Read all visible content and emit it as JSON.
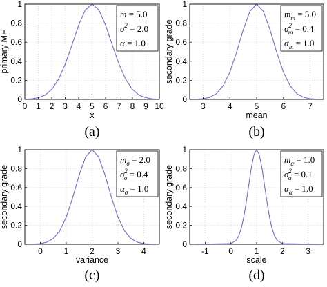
{
  "chart_data": [
    {
      "type": "line",
      "panel_label": "(a)",
      "xlabel": "x",
      "ylabel": "primary MF",
      "xlim": [
        0,
        10
      ],
      "ylim": [
        0,
        1
      ],
      "xticks": [
        0,
        1,
        2,
        3,
        4,
        5,
        6,
        7,
        8,
        9,
        10
      ],
      "yticks": [
        0,
        0.2,
        0.4,
        0.6,
        0.8,
        1
      ],
      "grid": true,
      "series": [
        {
          "color": "#6b6bd6",
          "x": [
            0,
            0.5,
            1,
            1.5,
            2,
            2.5,
            3,
            3.5,
            4,
            4.5,
            5,
            5.5,
            6,
            6.5,
            7,
            7.5,
            8,
            8.5,
            9,
            9.5,
            10
          ],
          "y": [
            0.002,
            0.005,
            0.018,
            0.044,
            0.105,
            0.21,
            0.37,
            0.57,
            0.78,
            0.94,
            1.0,
            0.94,
            0.78,
            0.57,
            0.37,
            0.21,
            0.105,
            0.044,
            0.018,
            0.005,
            0.002
          ]
        }
      ],
      "legend": {
        "position": "top-right",
        "rows": [
          {
            "sym": "m",
            "sub": "",
            "sup": "",
            "val": "= 5.0"
          },
          {
            "sym": "σ",
            "sub": "",
            "sup": "2",
            "val": "= 2.0"
          },
          {
            "sym": "α",
            "sub": "",
            "sup": "",
            "val": "= 1.0"
          }
        ]
      }
    },
    {
      "type": "line",
      "panel_label": "(b)",
      "xlabel": "mean",
      "ylabel": "secondary grade",
      "xlim": [
        2.5,
        7.5
      ],
      "ylim": [
        0,
        1
      ],
      "xticks": [
        3,
        4,
        5,
        6,
        7
      ],
      "yticks": [
        0,
        0.2,
        0.4,
        0.6,
        0.8,
        1
      ],
      "grid": true,
      "series": [
        {
          "color": "#6b6bd6",
          "x": [
            2.5,
            2.75,
            3,
            3.25,
            3.5,
            3.75,
            4,
            4.25,
            4.5,
            4.75,
            5,
            5.25,
            5.5,
            5.75,
            6,
            6.25,
            6.5,
            6.75,
            7,
            7.25,
            7.5
          ],
          "y": [
            0.0004,
            0.0022,
            0.0067,
            0.0218,
            0.0601,
            0.1427,
            0.2865,
            0.4946,
            0.7316,
            0.925,
            1.0,
            0.925,
            0.7316,
            0.4946,
            0.2865,
            0.1427,
            0.0601,
            0.0218,
            0.0067,
            0.0022,
            0.0004
          ]
        }
      ],
      "legend": {
        "position": "top-right",
        "rows": [
          {
            "sym": "m",
            "sub": "m",
            "sup": "",
            "val": "= 5.0"
          },
          {
            "sym": "σ",
            "sub": "m",
            "sup": "2",
            "val": "= 0.4"
          },
          {
            "sym": "α",
            "sub": "m",
            "sup": "",
            "val": "= 1.0"
          }
        ]
      }
    },
    {
      "type": "line",
      "panel_label": "(c)",
      "xlabel": "variance",
      "ylabel": "secondary grade",
      "xlim": [
        -0.6,
        4.6
      ],
      "ylim": [
        0,
        1
      ],
      "xticks": [
        0,
        1,
        2,
        3,
        4
      ],
      "yticks": [
        0,
        0.2,
        0.4,
        0.6,
        0.8,
        1
      ],
      "grid": true,
      "series": [
        {
          "color": "#6b6bd6",
          "x": [
            -0.6,
            -0.3,
            0,
            0.25,
            0.5,
            0.75,
            1,
            1.25,
            1.5,
            1.75,
            2,
            2.25,
            2.5,
            2.75,
            3,
            3.25,
            3.5,
            3.75,
            4,
            4.3,
            4.6
          ],
          "y": [
            0.0002,
            0.0014,
            0.0067,
            0.0218,
            0.0601,
            0.1427,
            0.2865,
            0.4946,
            0.7316,
            0.925,
            1.0,
            0.925,
            0.7316,
            0.4946,
            0.2865,
            0.1427,
            0.0601,
            0.0218,
            0.0067,
            0.0014,
            0.0002
          ]
        }
      ],
      "legend": {
        "position": "top-right",
        "rows": [
          {
            "sym": "m",
            "sub": "σ",
            "sup": "",
            "val": "= 2.0"
          },
          {
            "sym": "σ",
            "sub": "σ",
            "sup": "2",
            "val": "= 0.4"
          },
          {
            "sym": "α",
            "sub": "σ",
            "sup": "",
            "val": "= 1.0"
          }
        ]
      }
    },
    {
      "type": "line",
      "panel_label": "(d)",
      "xlabel": "scale",
      "ylabel": "secondary grade",
      "xlim": [
        -1.6,
        3.6
      ],
      "ylim": [
        0,
        1
      ],
      "xticks": [
        -1,
        0,
        1,
        2,
        3
      ],
      "yticks": [
        0,
        0.2,
        0.4,
        0.6,
        0.8,
        1
      ],
      "grid": true,
      "series": [
        {
          "color": "#6b6bd6",
          "x": [
            -1.6,
            0,
            0.2,
            0.3,
            0.4,
            0.5,
            0.6,
            0.7,
            0.8,
            0.9,
            1,
            1.1,
            1.2,
            1.3,
            1.4,
            1.5,
            1.6,
            1.7,
            1.8,
            2,
            3.6
          ],
          "y": [
            0,
            0.0067,
            0.0408,
            0.0863,
            0.1653,
            0.2865,
            0.4493,
            0.6376,
            0.8187,
            0.9512,
            1.0,
            0.9512,
            0.8187,
            0.6376,
            0.4493,
            0.2865,
            0.1653,
            0.0863,
            0.0408,
            0.0067,
            0
          ]
        }
      ],
      "legend": {
        "position": "top-right",
        "rows": [
          {
            "sym": "m",
            "sub": "α",
            "sup": "",
            "val": "= 1.0"
          },
          {
            "sym": "σ",
            "sub": "α",
            "sup": "2",
            "val": "= 0.1"
          },
          {
            "sym": "α",
            "sub": "α",
            "sup": "",
            "val": "= 1.0"
          }
        ]
      }
    }
  ]
}
